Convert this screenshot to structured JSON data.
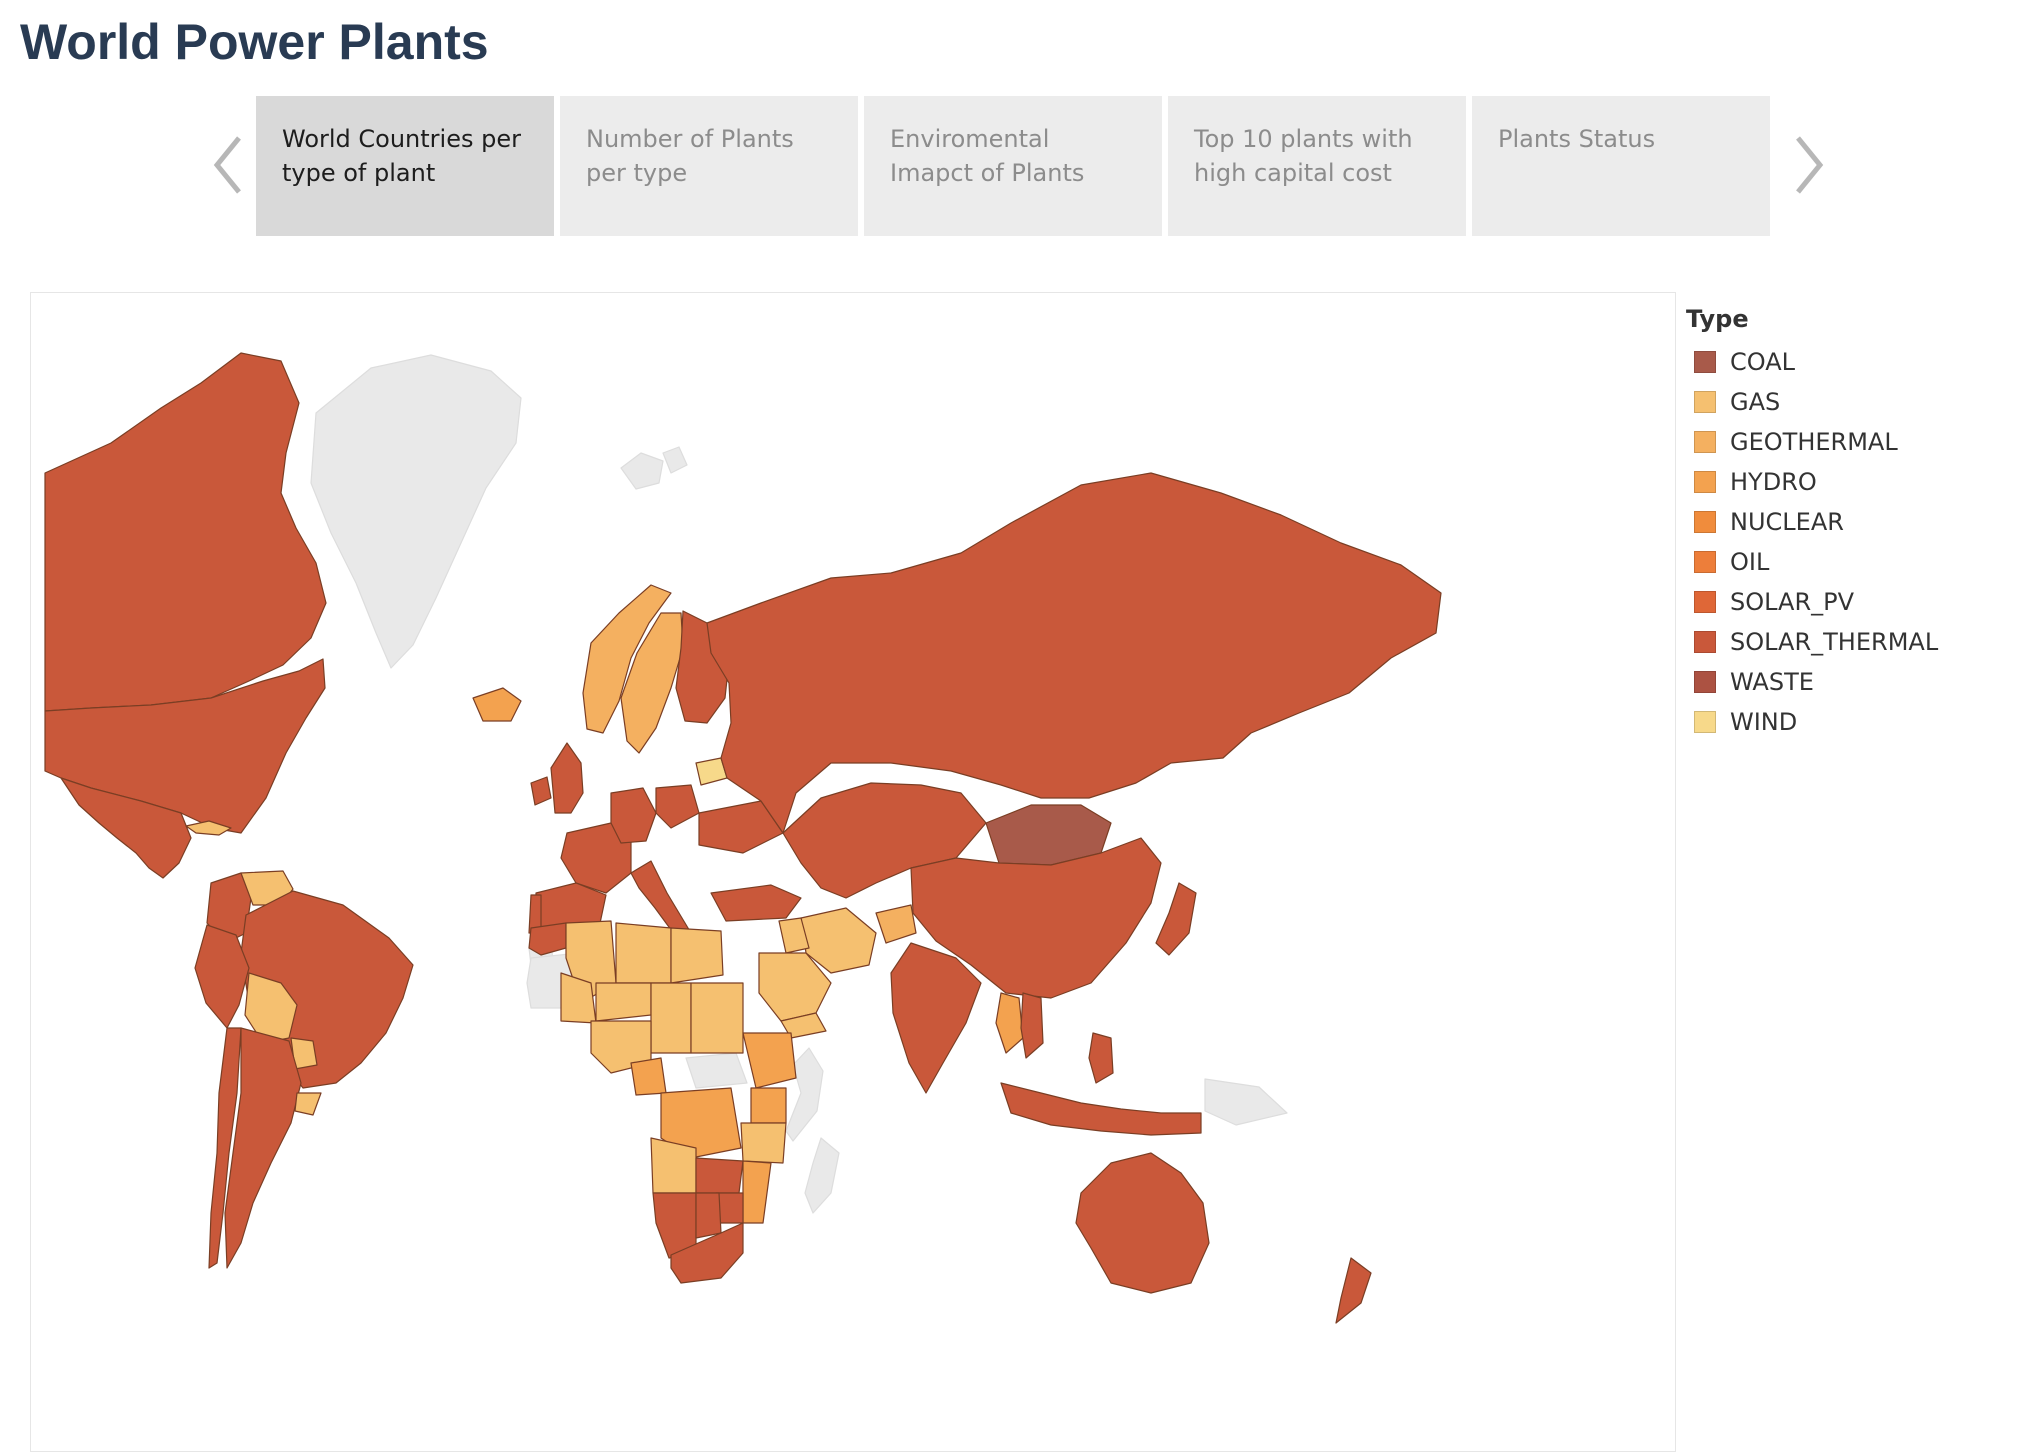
{
  "dashboard": {
    "title": "World Power Plants"
  },
  "tabs": [
    {
      "label": "World Countries per type of plant",
      "active": true
    },
    {
      "label": "Number of Plants per type",
      "active": false
    },
    {
      "label": "Enviromental Imapct of Plants",
      "active": false
    },
    {
      "label": "Top 10 plants with high capital cost",
      "active": false
    },
    {
      "label": "Plants Status",
      "active": false
    }
  ],
  "navigation": {
    "prev_icon": "chevron-left-icon",
    "next_icon": "chevron-right-icon"
  },
  "colors": {
    "no_data": "#e9e9e9",
    "border": "#7a3e24",
    "nav_arrow": "#b7b7b7"
  },
  "legend": {
    "title": "Type",
    "items": [
      {
        "label": "COAL",
        "color": "#a85a4a"
      },
      {
        "label": "GAS",
        "color": "#f5c070"
      },
      {
        "label": "GEOTHERMAL",
        "color": "#f4b060"
      },
      {
        "label": "HYDRO",
        "color": "#f3a24f"
      },
      {
        "label": "NUCLEAR",
        "color": "#f08c3c"
      },
      {
        "label": "OIL",
        "color": "#ed7e3a"
      },
      {
        "label": "SOLAR_PV",
        "color": "#df6737"
      },
      {
        "label": "SOLAR_THERMAL",
        "color": "#c9583a"
      },
      {
        "label": "WASTE",
        "color": "#ac5242"
      },
      {
        "label": "WIND",
        "color": "#f7d98a"
      }
    ]
  },
  "map": {
    "type": "choropleth",
    "regions": [
      {
        "name": "Canada",
        "type": "SOLAR_THERMAL"
      },
      {
        "name": "United States",
        "type": "SOLAR_THERMAL"
      },
      {
        "name": "Mexico",
        "type": "SOLAR_THERMAL"
      },
      {
        "name": "Cuba",
        "type": "GAS"
      },
      {
        "name": "Venezuela",
        "type": "GAS"
      },
      {
        "name": "Brazil",
        "type": "SOLAR_THERMAL"
      },
      {
        "name": "Bolivia",
        "type": "GAS"
      },
      {
        "name": "Paraguay",
        "type": "GAS"
      },
      {
        "name": "Uruguay",
        "type": "GAS"
      },
      {
        "name": "Peru",
        "type": "SOLAR_THERMAL"
      },
      {
        "name": "Colombia",
        "type": "SOLAR_THERMAL"
      },
      {
        "name": "Argentina",
        "type": "SOLAR_THERMAL"
      },
      {
        "name": "Chile",
        "type": "SOLAR_THERMAL"
      },
      {
        "name": "Iceland",
        "type": "HYDRO"
      },
      {
        "name": "Norway",
        "type": "GEOTHERMAL"
      },
      {
        "name": "Sweden",
        "type": "GEOTHERMAL"
      },
      {
        "name": "Finland",
        "type": "SOLAR_THERMAL"
      },
      {
        "name": "Latvia",
        "type": "WIND"
      },
      {
        "name": "United Kingdom",
        "type": "SOLAR_THERMAL"
      },
      {
        "name": "Ireland",
        "type": "SOLAR_THERMAL"
      },
      {
        "name": "France",
        "type": "SOLAR_THERMAL"
      },
      {
        "name": "Spain",
        "type": "SOLAR_THERMAL"
      },
      {
        "name": "Portugal",
        "type": "SOLAR_THERMAL"
      },
      {
        "name": "Germany",
        "type": "SOLAR_THERMAL"
      },
      {
        "name": "Poland",
        "type": "SOLAR_THERMAL"
      },
      {
        "name": "Italy",
        "type": "SOLAR_THERMAL"
      },
      {
        "name": "Ukraine",
        "type": "SOLAR_THERMAL"
      },
      {
        "name": "Turkey",
        "type": "SOLAR_THERMAL"
      },
      {
        "name": "Russia",
        "type": "SOLAR_THERMAL"
      },
      {
        "name": "Kazakhstan",
        "type": "SOLAR_THERMAL"
      },
      {
        "name": "Mongolia",
        "type": "COAL"
      },
      {
        "name": "China",
        "type": "SOLAR_THERMAL"
      },
      {
        "name": "Japan",
        "type": "SOLAR_THERMAL"
      },
      {
        "name": "India",
        "type": "SOLAR_THERMAL"
      },
      {
        "name": "Iran",
        "type": "GAS"
      },
      {
        "name": "Afghanistan",
        "type": "GEOTHERMAL"
      },
      {
        "name": "Saudi Arabia",
        "type": "GAS"
      },
      {
        "name": "Iraq",
        "type": "GAS"
      },
      {
        "name": "Yemen",
        "type": "GAS"
      },
      {
        "name": "Egypt",
        "type": "GAS"
      },
      {
        "name": "Libya",
        "type": "GAS"
      },
      {
        "name": "Algeria",
        "type": "GAS"
      },
      {
        "name": "Morocco",
        "type": "SOLAR_THERMAL"
      },
      {
        "name": "Mali",
        "type": "GAS"
      },
      {
        "name": "Niger",
        "type": "GAS"
      },
      {
        "name": "Chad",
        "type": "GAS"
      },
      {
        "name": "Sudan",
        "type": "GAS"
      },
      {
        "name": "Ethiopia",
        "type": "HYDRO"
      },
      {
        "name": "Nigeria",
        "type": "GAS"
      },
      {
        "name": "Cameroon",
        "type": "HYDRO"
      },
      {
        "name": "DR Congo",
        "type": "HYDRO"
      },
      {
        "name": "Angola",
        "type": "GAS"
      },
      {
        "name": "Tanzania",
        "type": "GAS"
      },
      {
        "name": "Kenya",
        "type": "HYDRO"
      },
      {
        "name": "Mozambique",
        "type": "HYDRO"
      },
      {
        "name": "Zambia",
        "type": "SOLAR_THERMAL"
      },
      {
        "name": "Zimbabwe",
        "type": "SOLAR_THERMAL"
      },
      {
        "name": "Namibia",
        "type": "SOLAR_THERMAL"
      },
      {
        "name": "Botswana",
        "type": "SOLAR_THERMAL"
      },
      {
        "name": "South Africa",
        "type": "SOLAR_THERMAL"
      },
      {
        "name": "Thailand",
        "type": "HYDRO"
      },
      {
        "name": "Vietnam",
        "type": "SOLAR_THERMAL"
      },
      {
        "name": "Indonesia",
        "type": "SOLAR_THERMAL"
      },
      {
        "name": "Philippines",
        "type": "SOLAR_THERMAL"
      },
      {
        "name": "Australia",
        "type": "SOLAR_THERMAL"
      },
      {
        "name": "New Zealand",
        "type": "SOLAR_THERMAL"
      },
      {
        "name": "Greenland",
        "type": "NO_DATA"
      },
      {
        "name": "Svalbard",
        "type": "NO_DATA"
      },
      {
        "name": "Mauritania",
        "type": "NO_DATA"
      },
      {
        "name": "Central African Republic",
        "type": "NO_DATA"
      },
      {
        "name": "Somalia",
        "type": "NO_DATA"
      },
      {
        "name": "Madagascar",
        "type": "NO_DATA"
      },
      {
        "name": "Papua New Guinea",
        "type": "NO_DATA"
      },
      {
        "name": "Western Sahara",
        "type": "NO_DATA"
      }
    ]
  }
}
